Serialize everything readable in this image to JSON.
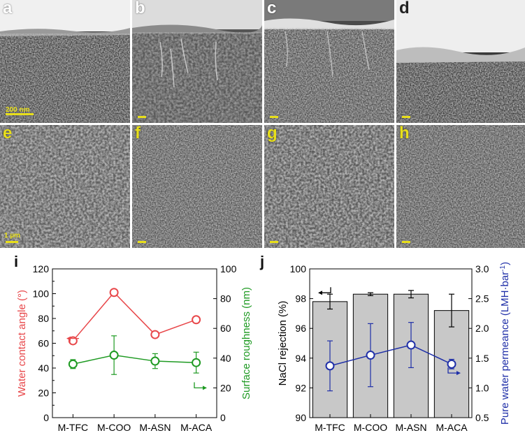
{
  "panels": {
    "a": {
      "label": "a",
      "scale": "200 nm"
    },
    "b": {
      "label": "b",
      "scale": ""
    },
    "c": {
      "label": "c",
      "scale": ""
    },
    "d": {
      "label": "d",
      "scale": ""
    },
    "e": {
      "label": "e",
      "scale": "1 µm"
    },
    "f": {
      "label": "f",
      "scale": ""
    },
    "g": {
      "label": "g",
      "scale": ""
    },
    "h": {
      "label": "h",
      "scale": ""
    }
  },
  "chart_labels": {
    "i": "i",
    "j": "j"
  },
  "colors": {
    "red": "#e8474a",
    "green": "#1e9a22",
    "blue": "#1f2fa8",
    "bar": "#c8c8c8"
  },
  "chart_data": [
    {
      "type": "line",
      "panel": "i",
      "categories": [
        "M-TFC",
        "M-COO",
        "M-ASN",
        "M-ACA"
      ],
      "series": [
        {
          "axis": "left",
          "values": [
            62,
            101,
            67,
            79
          ],
          "error": [
            1.5,
            2,
            1.5,
            1.5
          ],
          "color": "#e8474a"
        },
        {
          "axis": "right",
          "values": [
            36,
            42,
            38,
            37
          ],
          "error": [
            3,
            13,
            5,
            7
          ],
          "color": "#1e9a22"
        }
      ],
      "ylabel": "Water contact angle (°)",
      "y2label": "Surface roughness (nm)",
      "ylim": [
        0,
        120
      ],
      "y2lim": [
        0,
        100
      ],
      "yticks": [
        "0",
        "20",
        "40",
        "60",
        "80",
        "100",
        "120"
      ],
      "y2ticks": [
        "0",
        "20",
        "40",
        "60",
        "80",
        "100"
      ]
    },
    {
      "type": "bar",
      "panel": "j",
      "categories": [
        "M-TFC",
        "M-COO",
        "M-ASN",
        "M-ACA"
      ],
      "bars": {
        "values": [
          97.8,
          98.3,
          98.3,
          97.2
        ],
        "error": [
          0.5,
          0.1,
          0.25,
          1.1
        ]
      },
      "line": {
        "values": [
          1.37,
          1.55,
          1.72,
          1.4
        ],
        "error": [
          0.42,
          0.53,
          0.38,
          0.08
        ]
      },
      "ylabel": "NaCl rejection (%)",
      "y2label": "Pure water permeance (LMH·bar",
      "y2label_sup": "-1",
      "y2label_end": ")",
      "ylim": [
        90,
        100
      ],
      "y2lim": [
        0.5,
        3.0
      ],
      "yticks": [
        "90",
        "92",
        "94",
        "96",
        "98",
        "100"
      ],
      "y2ticks": [
        "0.5",
        "1.0",
        "1.5",
        "2.0",
        "2.5",
        "3.0"
      ]
    }
  ]
}
